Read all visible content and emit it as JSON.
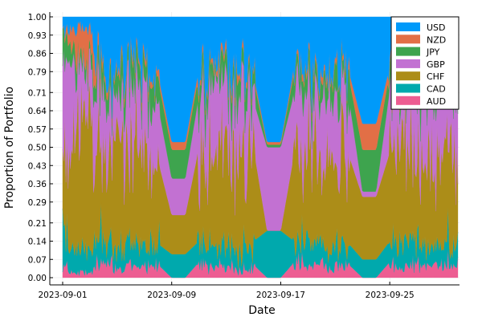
{
  "chart_data": {
    "type": "area",
    "title": "",
    "xlabel": "Date",
    "ylabel": "Proportion of Portfolio",
    "x_ticks": [
      "2023-09-01",
      "2023-09-09",
      "2023-09-17",
      "2023-09-25"
    ],
    "y_ticks": [
      "0.00",
      "0.07",
      "0.14",
      "0.21",
      "0.29",
      "0.36",
      "0.43",
      "0.50",
      "0.57",
      "0.64",
      "0.71",
      "0.79",
      "0.86",
      "0.93",
      "1.00"
    ],
    "xlim": [
      "2023-09-01",
      "2023-09-30"
    ],
    "ylim": [
      0,
      1
    ],
    "grid": true,
    "legend_position": "top-right",
    "stack_order_bottom_to_top": [
      "AUD",
      "CAD",
      "CHF",
      "GBP",
      "JPY",
      "NZD",
      "USD"
    ],
    "series": [
      {
        "name": "USD",
        "color": "#009AFA"
      },
      {
        "name": "NZD",
        "color": "#E26F46"
      },
      {
        "name": "JPY",
        "color": "#3EA44E"
      },
      {
        "name": "GBP",
        "color": "#C271D2"
      },
      {
        "name": "CHF",
        "color": "#AC8D18"
      },
      {
        "name": "CAD",
        "color": "#00A9AD"
      },
      {
        "name": "AUD",
        "color": "#ED5D92"
      }
    ],
    "samples": [
      {
        "x": "2023-09-01",
        "cumulative": [
          0.05,
          0.18,
          0.44,
          0.86,
          0.95,
          0.95,
          1.0
        ]
      },
      {
        "x": "2023-09-02",
        "cumulative": [
          0.02,
          0.1,
          0.58,
          0.81,
          0.85,
          0.96,
          1.0
        ]
      },
      {
        "x": "2023-09-03",
        "cumulative": [
          0.02,
          0.1,
          0.58,
          0.81,
          0.85,
          0.96,
          1.0
        ]
      },
      {
        "x": "2023-09-04",
        "cumulative": [
          0.06,
          0.15,
          0.48,
          0.7,
          0.78,
          0.8,
          1.0
        ]
      },
      {
        "x": "2023-09-05",
        "cumulative": [
          0.04,
          0.12,
          0.55,
          0.68,
          0.76,
          0.78,
          1.0
        ]
      },
      {
        "x": "2023-09-06",
        "cumulative": [
          0.05,
          0.14,
          0.46,
          0.72,
          0.8,
          0.82,
          1.0
        ]
      },
      {
        "x": "2023-09-07",
        "cumulative": [
          0.03,
          0.11,
          0.52,
          0.74,
          0.81,
          0.83,
          1.0
        ]
      },
      {
        "x": "2023-09-08",
        "cumulative": [
          0.05,
          0.13,
          0.45,
          0.66,
          0.76,
          0.78,
          1.0
        ]
      },
      {
        "x": "2023-09-09",
        "cumulative": [
          0.0,
          0.09,
          0.24,
          0.38,
          0.49,
          0.52,
          1.0
        ]
      },
      {
        "x": "2023-09-10",
        "cumulative": [
          0.0,
          0.09,
          0.24,
          0.38,
          0.49,
          0.52,
          1.0
        ]
      },
      {
        "x": "2023-09-11",
        "cumulative": [
          0.06,
          0.14,
          0.5,
          0.7,
          0.78,
          0.8,
          1.0
        ]
      },
      {
        "x": "2023-09-12",
        "cumulative": [
          0.04,
          0.12,
          0.46,
          0.73,
          0.8,
          0.82,
          1.0
        ]
      },
      {
        "x": "2023-09-13",
        "cumulative": [
          0.05,
          0.13,
          0.52,
          0.7,
          0.78,
          0.8,
          1.0
        ]
      },
      {
        "x": "2023-09-14",
        "cumulative": [
          0.03,
          0.11,
          0.47,
          0.72,
          0.79,
          0.81,
          1.0
        ]
      },
      {
        "x": "2023-09-15",
        "cumulative": [
          0.05,
          0.14,
          0.5,
          0.68,
          0.76,
          0.78,
          1.0
        ]
      },
      {
        "x": "2023-09-16",
        "cumulative": [
          0.0,
          0.18,
          0.18,
          0.5,
          0.51,
          0.52,
          1.0
        ]
      },
      {
        "x": "2023-09-17",
        "cumulative": [
          0.0,
          0.18,
          0.18,
          0.5,
          0.51,
          0.52,
          1.0
        ]
      },
      {
        "x": "2023-09-18",
        "cumulative": [
          0.06,
          0.14,
          0.48,
          0.71,
          0.79,
          0.81,
          1.0
        ]
      },
      {
        "x": "2023-09-19",
        "cumulative": [
          0.04,
          0.12,
          0.5,
          0.68,
          0.77,
          0.79,
          1.0
        ]
      },
      {
        "x": "2023-09-20",
        "cumulative": [
          0.05,
          0.13,
          0.46,
          0.73,
          0.8,
          0.82,
          1.0
        ]
      },
      {
        "x": "2023-09-21",
        "cumulative": [
          0.04,
          0.12,
          0.49,
          0.7,
          0.78,
          0.8,
          1.0
        ]
      },
      {
        "x": "2023-09-22",
        "cumulative": [
          0.05,
          0.13,
          0.47,
          0.69,
          0.77,
          0.79,
          1.0
        ]
      },
      {
        "x": "2023-09-23",
        "cumulative": [
          0.0,
          0.07,
          0.31,
          0.33,
          0.49,
          0.59,
          1.0
        ]
      },
      {
        "x": "2023-09-24",
        "cumulative": [
          0.0,
          0.07,
          0.31,
          0.33,
          0.49,
          0.59,
          1.0
        ]
      },
      {
        "x": "2023-09-25",
        "cumulative": [
          0.06,
          0.14,
          0.48,
          0.72,
          0.79,
          0.81,
          1.0
        ]
      },
      {
        "x": "2023-09-26",
        "cumulative": [
          0.04,
          0.12,
          0.51,
          0.69,
          0.77,
          0.79,
          1.0
        ]
      },
      {
        "x": "2023-09-27",
        "cumulative": [
          0.05,
          0.13,
          0.46,
          0.71,
          0.79,
          0.81,
          1.0
        ]
      },
      {
        "x": "2023-09-28",
        "cumulative": [
          0.04,
          0.12,
          0.49,
          0.7,
          0.78,
          0.8,
          1.0
        ]
      },
      {
        "x": "2023-09-29",
        "cumulative": [
          0.05,
          0.13,
          0.47,
          0.72,
          0.8,
          0.82,
          1.0
        ]
      },
      {
        "x": "2023-09-30",
        "cumulative": [
          0.04,
          0.12,
          0.5,
          0.69,
          0.77,
          0.79,
          1.0
        ]
      }
    ]
  }
}
